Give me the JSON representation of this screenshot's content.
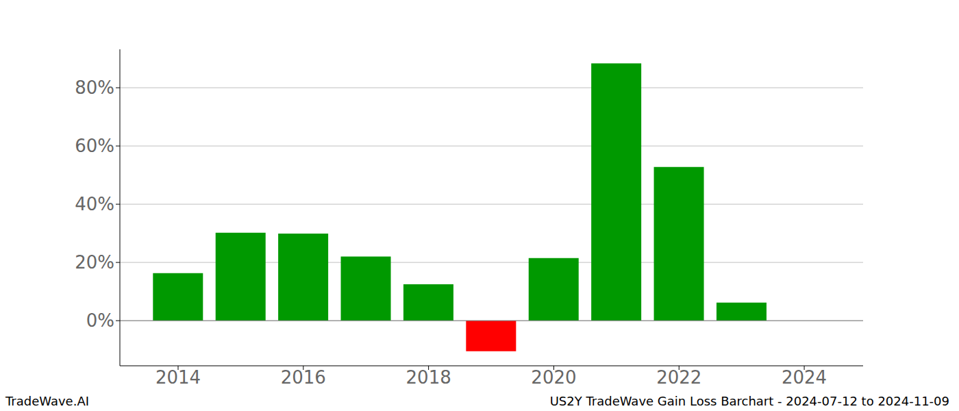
{
  "chart_data": {
    "type": "bar",
    "title": "US2Y TradeWave Gain Loss Barchart - 2024-07-12 to 2024-11-09",
    "source": "TradeWave.AI",
    "x": [
      2014,
      2015,
      2016,
      2017,
      2018,
      2019,
      2020,
      2021,
      2022,
      2023
    ],
    "values": [
      16.3,
      30.2,
      29.9,
      22.0,
      12.5,
      -10.5,
      21.5,
      88.4,
      52.8,
      6.2
    ],
    "colors": [
      "#009900",
      "#009900",
      "#009900",
      "#009900",
      "#009900",
      "#ff0000",
      "#009900",
      "#009900",
      "#009900",
      "#009900"
    ],
    "xlim": [
      2013.07,
      2024.94
    ],
    "xticks": [
      2014,
      2016,
      2018,
      2020,
      2022,
      2024
    ],
    "ylim": [
      -15.5,
      93.2
    ],
    "yticks": [
      {
        "value": 0,
        "label": "0%"
      },
      {
        "value": 20,
        "label": "20%"
      },
      {
        "value": 40,
        "label": "40%"
      },
      {
        "value": 60,
        "label": "60%"
      },
      {
        "value": 80,
        "label": "80%"
      }
    ],
    "grid": true
  }
}
